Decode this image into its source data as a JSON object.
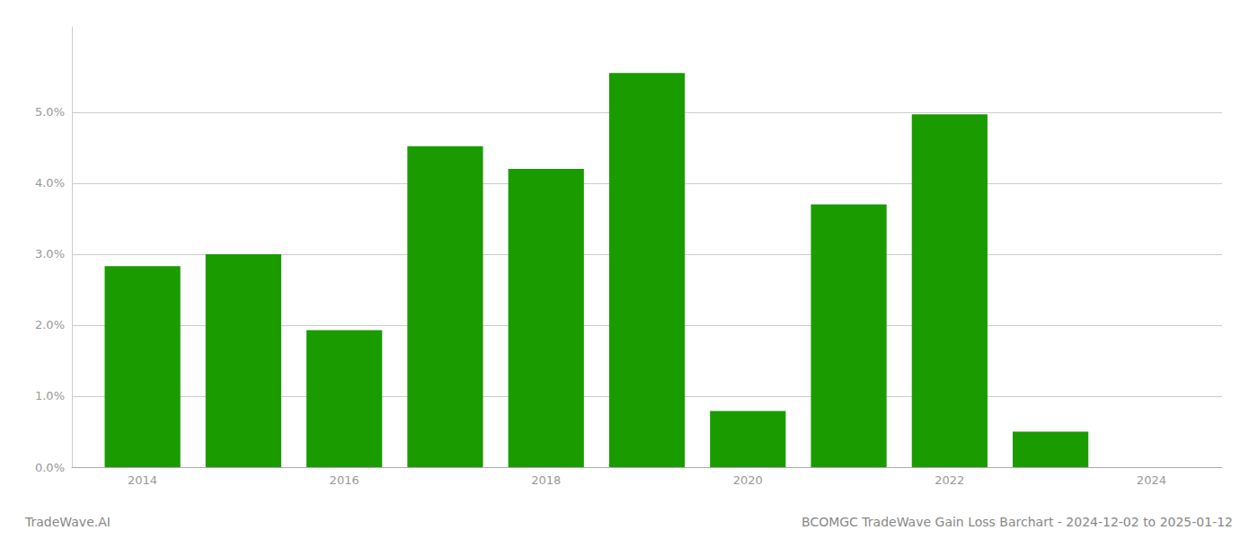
{
  "chart_data": {
    "type": "bar",
    "x": [
      2014,
      2015,
      2016,
      2017,
      2018,
      2019,
      2020,
      2021,
      2022,
      2023
    ],
    "values": [
      0.0283,
      0.03,
      0.0193,
      0.0452,
      0.042,
      0.0555,
      0.0079,
      0.037,
      0.0497,
      0.005
    ],
    "color": "#1a9b00",
    "xlim": [
      2013.3,
      2024.7
    ],
    "xticks": [
      2014,
      2016,
      2018,
      2020,
      2022,
      2024
    ],
    "ylim": [
      0,
      0.062
    ],
    "yticks": [
      {
        "value": 0.0,
        "label": "0.0%"
      },
      {
        "value": 0.01,
        "label": "1.0%"
      },
      {
        "value": 0.02,
        "label": "2.0%"
      },
      {
        "value": 0.03,
        "label": "3.0%"
      },
      {
        "value": 0.04,
        "label": "4.0%"
      },
      {
        "value": 0.05,
        "label": "5.0%"
      }
    ],
    "grid": true,
    "annotations": [
      "TradeWave.AI",
      "BCOMGC TradeWave Gain Loss Barchart - 2024-12-02 to 2025-01-12"
    ]
  }
}
